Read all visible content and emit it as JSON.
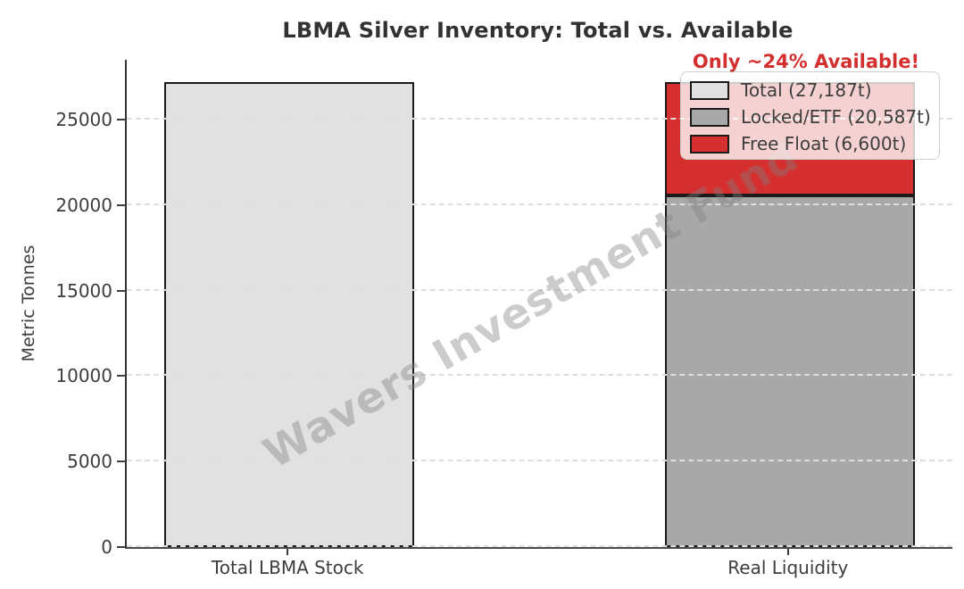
{
  "title": "LBMA Silver Inventory: Total vs. Available",
  "annotation": "Only ~24% Available!",
  "watermark": "Wavers Investment Fund",
  "ylabel": "Metric Tonnes",
  "colors": {
    "annotation": "#d32f2f",
    "total_bar": "#e1e1e1",
    "locked_bar": "#a8a8a8",
    "free_float_bar": "#d62f2f",
    "bar_edge": "#1a1a1a",
    "grid": "#dedede",
    "axis_text": "#3d3d3d"
  },
  "legend": {
    "items": [
      {
        "label": "Total (27,187t)",
        "color": "#e1e1e1"
      },
      {
        "label": "Locked/ETF (20,587t)",
        "color": "#a8a8a8"
      },
      {
        "label": "Free Float (6,600t)",
        "color": "#d62f2f"
      }
    ]
  },
  "chart_data": {
    "type": "bar",
    "stacked": true,
    "title": "LBMA Silver Inventory: Total vs. Available",
    "xlabel": "",
    "ylabel": "Metric Tonnes",
    "categories": [
      "Total LBMA Stock",
      "Real Liquidity"
    ],
    "series": [
      {
        "name": "Total (27,187t)",
        "color": "#e1e1e1",
        "values": [
          27187,
          0
        ]
      },
      {
        "name": "Locked/ETF (20,587t)",
        "color": "#a8a8a8",
        "values": [
          0,
          20587
        ]
      },
      {
        "name": "Free Float (6,600t)",
        "color": "#d62f2f",
        "values": [
          0,
          6600
        ]
      }
    ],
    "ylim": [
      0,
      28500
    ],
    "yticks": [
      0,
      5000,
      10000,
      15000,
      20000,
      25000
    ],
    "grid": true,
    "grid_style": "dashed",
    "legend_position": "upper right",
    "annotation": "Only ~24% Available!"
  }
}
